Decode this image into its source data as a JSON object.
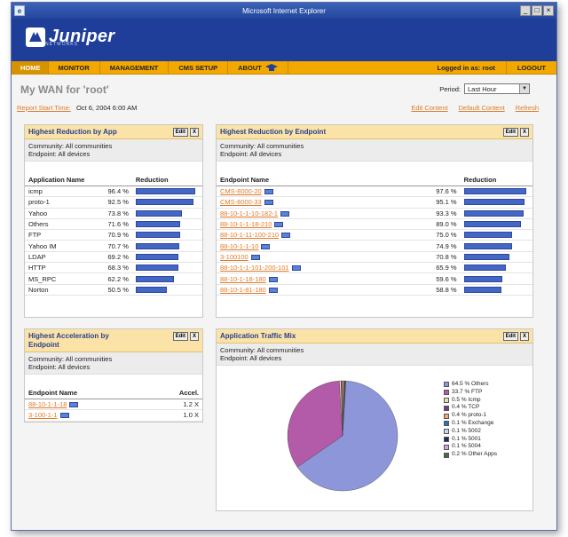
{
  "window": {
    "title": "Microsoft Internet Explorer",
    "icon": "ie-icon",
    "controls": [
      "_",
      "□",
      "×"
    ]
  },
  "brand": {
    "name": "Juniper",
    "sub": "NETWORKS"
  },
  "nav": {
    "home": "HOME",
    "items": [
      "MONITOR",
      "MANAGEMENT",
      "CMS SETUP",
      "ABOUT"
    ],
    "logged_in": "Logged in as: root",
    "logout": "LOGOUT"
  },
  "page": {
    "title": "My WAN for 'root'",
    "period_label": "Period:",
    "period_value": "Last Hour",
    "report_label": "Report Start Time:",
    "report_value": "Oct 6, 2004 6:00 AM",
    "links": [
      "Edit Content",
      "Default Content",
      "Refresh"
    ]
  },
  "panels": {
    "edit": "Edit",
    "close": "X",
    "by_app": {
      "title": "Highest Reduction by App",
      "community": "Community: All communities",
      "endpoint": "Endpoint: All devices",
      "col_name": "Application Name",
      "col_value": "Reduction",
      "rows": [
        {
          "name": "icmp",
          "value": "96.4 %",
          "pct": 96.4
        },
        {
          "name": "proto-1",
          "value": "92.5 %",
          "pct": 92.5
        },
        {
          "name": "Yahoo",
          "value": "73.8 %",
          "pct": 73.8
        },
        {
          "name": "Others",
          "value": "71.6 %",
          "pct": 71.6
        },
        {
          "name": "FTP",
          "value": "70.9 %",
          "pct": 70.9
        },
        {
          "name": "Yahoo IM",
          "value": "70.7 %",
          "pct": 70.7
        },
        {
          "name": "LDAP",
          "value": "69.2 %",
          "pct": 69.2
        },
        {
          "name": "HTTP",
          "value": "68.3 %",
          "pct": 68.3
        },
        {
          "name": "MS_RPC",
          "value": "62.2 %",
          "pct": 62.2
        },
        {
          "name": "Norton",
          "value": "50.5 %",
          "pct": 50.5
        }
      ]
    },
    "by_endpoint": {
      "title": "Highest Reduction by Endpoint",
      "community": "Community: All communities",
      "endpoint": "Endpoint: All devices",
      "col_name": "Endpoint Name",
      "col_value": "Reduction",
      "rows": [
        {
          "name": "CMS-8000-20",
          "value": "97.6 %",
          "pct": 97.6
        },
        {
          "name": "CMS-8000-33",
          "value": "95.1 %",
          "pct": 95.1
        },
        {
          "name": "88-10-1-1-10-182-1",
          "value": "93.3 %",
          "pct": 93.3
        },
        {
          "name": "88-10-1-1-18-210",
          "value": "89.0 %",
          "pct": 89.0
        },
        {
          "name": "88-10-1-11-100-210",
          "value": "75.0 %",
          "pct": 75.0
        },
        {
          "name": "88-10-1-1-10",
          "value": "74.9 %",
          "pct": 74.9
        },
        {
          "name": "3-100100",
          "value": "70.8 %",
          "pct": 70.8
        },
        {
          "name": "88-10-1-1-101-200-101",
          "value": "65.9 %",
          "pct": 65.9
        },
        {
          "name": "88-10-1-18-180",
          "value": "59.6 %",
          "pct": 59.6
        },
        {
          "name": "88-10-1-81-180",
          "value": "58.8 %",
          "pct": 58.8
        }
      ]
    },
    "acceleration": {
      "title_line1": "Highest Acceleration by",
      "title_line2": "Endpoint",
      "community": "Community: All communities",
      "endpoint": "Endpoint: All devices",
      "col_name": "Endpoint Name",
      "col_value": "Accel.",
      "rows": [
        {
          "name": "88-10-1-1-18",
          "value": "1.2 X"
        },
        {
          "name": "3-100-1-1",
          "value": "1.0 X"
        }
      ]
    },
    "traffic_mix": {
      "title": "Application Traffic Mix",
      "community": "Community: All communities",
      "endpoint": "Endpoint: All devices"
    }
  },
  "chart_data": {
    "type": "pie",
    "title": "Application Traffic Mix",
    "categories": [
      "Others",
      "FTP",
      "Icmp",
      "TCP",
      "proto-1",
      "Exchange",
      "5002",
      "5001",
      "5004",
      "Other Apps"
    ],
    "values": [
      64.5,
      33.7,
      0.5,
      0.4,
      0.4,
      0.1,
      0.1,
      0.1,
      0.1,
      0.2
    ],
    "labels": [
      "64.5 % Others",
      "33.7 % FTP",
      "0.5 % Icmp",
      "0.4 % TCP",
      "0.4 % proto-1",
      "0.1 % Exchange",
      "0.1 % 5002",
      "0.1 % 5001",
      "0.1 % 5004",
      "0.2 % Other Apps"
    ],
    "colors": [
      "#8c96d8",
      "#b35aa8",
      "#e9e0b4",
      "#7a3a7a",
      "#f0a878",
      "#2d6db0",
      "#c8d8f0",
      "#1a2a6a",
      "#d8a0e8",
      "#4a6a4a"
    ],
    "legend": "right"
  }
}
